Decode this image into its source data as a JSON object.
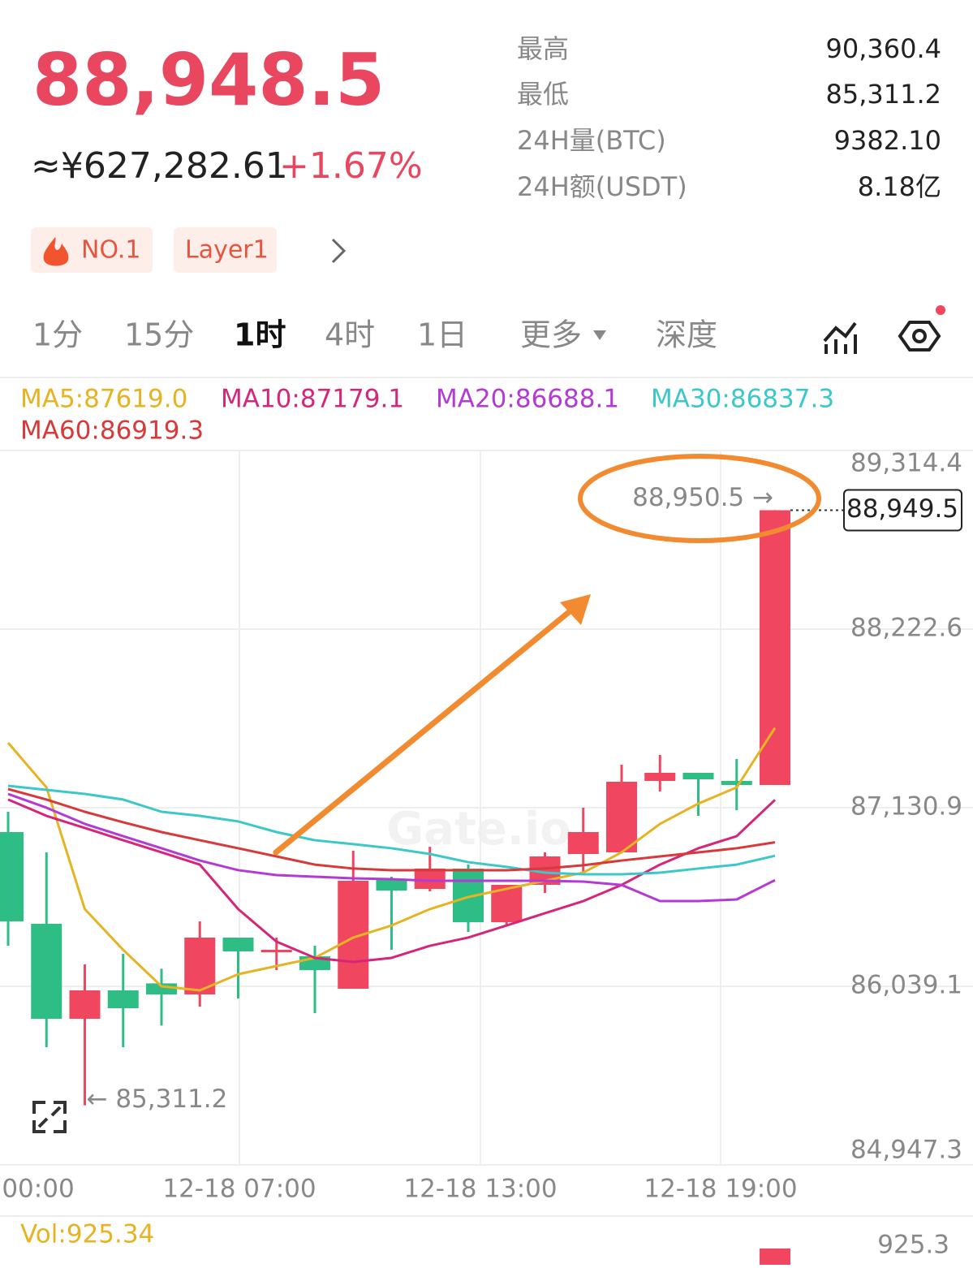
{
  "header": {
    "price": "88,948.5",
    "cny": "≈¥627,282.61",
    "change": "+1.67%",
    "stats": [
      {
        "label": "最高",
        "value": "90,360.4"
      },
      {
        "label": "最低",
        "value": "85,311.2"
      },
      {
        "label": "24H量(BTC)",
        "value": "9382.10"
      },
      {
        "label": "24H额(USDT)",
        "value": "8.18亿"
      }
    ],
    "tags": [
      "NO.1",
      "Layer1"
    ]
  },
  "tabs": [
    "1分",
    "15分",
    "1时",
    "4时",
    "1日",
    "更多",
    "深度"
  ],
  "chart_data": {
    "type": "candlestick",
    "legend": [
      "MA5:87619.0",
      "MA10:87179.1",
      "MA20:86688.1",
      "MA30:86837.3",
      "MA60:86919.3"
    ],
    "open": [
      86981.8,
      86421.2,
      85840.5,
      86014.2,
      86057.0,
      85989.4,
      86336.8,
      86262.4,
      86222.7,
      86024.2,
      86694.2,
      86634.6,
      86758.7,
      86430.9,
      86659.4,
      86848.0,
      86858.0,
      87294.7,
      87344.3,
      87294.7,
      87269.9
    ],
    "high": [
      87106.1,
      86857.9,
      86173.0,
      86237.6,
      86146.3,
      86436.1,
      86336.8,
      86336.8,
      86287.2,
      86867.9,
      86709.0,
      86892.1,
      86783.5,
      86659.4,
      86857.9,
      87130.9,
      87393.9,
      87453.5,
      87344.3,
      87428.7,
      88950.5
    ],
    "low": [
      86287.2,
      85666.8,
      85311.2,
      85666.8,
      85799.0,
      85915.0,
      85964.6,
      86138.3,
      85875.3,
      86024.2,
      86262.4,
      86619.7,
      86371.3,
      86411.1,
      86609.8,
      86734.4,
      86858.0,
      87230.2,
      87081.3,
      87116.0,
      87269.9
    ],
    "close": [
      86436.1,
      85840.5,
      86014.2,
      85905.0,
      85989.4,
      86336.8,
      86252.4,
      86262.4,
      86138.3,
      86684.2,
      86624.7,
      86758.7,
      86430.9,
      86659.4,
      86833.1,
      86982.0,
      87289.7,
      87344.3,
      87304.6,
      87269.9,
      88949.5
    ],
    "series": [
      {
        "name": "MA5",
        "color": "#e6b422",
        "values": [
          87528,
          87255,
          86511,
          86262,
          86039,
          86014,
          86113,
          86163,
          86213,
          86337,
          86411,
          86511,
          86585,
          86635,
          86684,
          86734,
          86858,
          87032,
          87156,
          87255,
          87619.0
        ]
      },
      {
        "name": "MA10",
        "color": "#d6267a",
        "values": [
          87181,
          87081,
          87007,
          86932,
          86858,
          86783,
          86511,
          86312,
          86213,
          86188,
          86213,
          86287,
          86337,
          86411,
          86486,
          86560,
          86659,
          86783,
          86883,
          86957,
          87179.1
        ]
      },
      {
        "name": "MA20",
        "color": "#b43ad6",
        "values": [
          87215,
          87131,
          87032,
          86957,
          86883,
          86808,
          86749,
          86719,
          86709,
          86699,
          86694,
          86684,
          86684,
          86684,
          86684,
          86679,
          86659,
          86560,
          86560,
          86570,
          86688.1
        ]
      },
      {
        "name": "MA30",
        "color": "#3cc8c8",
        "values": [
          87265,
          87240,
          87215,
          87181,
          87106,
          87081,
          87047,
          86982,
          86932,
          86908,
          86883,
          86848,
          86798,
          86769,
          86734,
          86724,
          86724,
          86734,
          86759,
          86783,
          86837.3
        ]
      },
      {
        "name": "MA60",
        "color": "#d63a3a",
        "values": [
          87245,
          87181,
          87106,
          87042,
          86982,
          86932,
          86883,
          86833,
          86783,
          86759,
          86749,
          86749,
          86749,
          86749,
          86759,
          86779,
          86808,
          86833,
          86858,
          86883,
          86919.3
        ]
      }
    ],
    "up_color": "#f0465f",
    "down_color": "#2ebd85",
    "ylim": [
      84947.3,
      89314.4
    ],
    "yticks": [
      {
        "value": 84947.3,
        "label": "84,947.3"
      },
      {
        "value": 86039.1,
        "label": "86,039.1"
      },
      {
        "value": 87130.9,
        "label": "87,130.9"
      },
      {
        "value": 88222.6,
        "label": "88,222.6"
      },
      {
        "value": 89314.4,
        "label": "89,314.4"
      }
    ],
    "x_labels": [
      "00:00",
      "12-18 07:00",
      "12-18 13:00",
      "12-18 19:00"
    ],
    "high_label": "88,950.5 →",
    "low_label": "← 85,311.2",
    "last_price": "88,949.5",
    "watermark": "Gate.io",
    "volume_label": "Vol:925.34",
    "volume_axis": "925.3"
  }
}
